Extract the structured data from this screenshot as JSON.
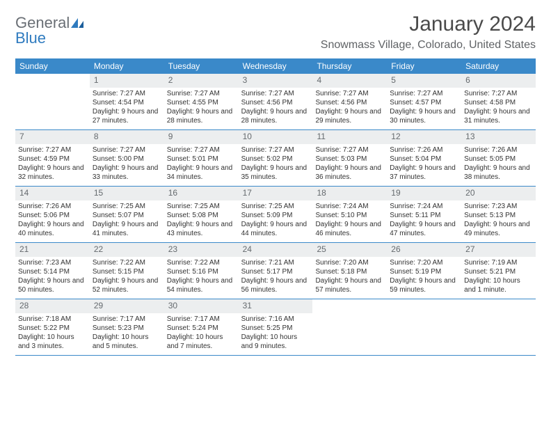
{
  "logo": {
    "word1": "General",
    "word2": "Blue"
  },
  "title": {
    "month": "January 2024",
    "location": "Snowmass Village, Colorado, United States"
  },
  "colors": {
    "header_bg": "#3a89c9",
    "header_text": "#ffffff",
    "num_bg": "#eceeef",
    "num_text": "#656a6e",
    "border": "#3a89c9",
    "logo_gray": "#6a6f75",
    "logo_blue": "#2f7bbf",
    "body_text": "#323232"
  },
  "day_names": [
    "Sunday",
    "Monday",
    "Tuesday",
    "Wednesday",
    "Thursday",
    "Friday",
    "Saturday"
  ],
  "weeks": [
    [
      {
        "n": "",
        "sr": "",
        "ss": "",
        "dl": ""
      },
      {
        "n": "1",
        "sr": "Sunrise: 7:27 AM",
        "ss": "Sunset: 4:54 PM",
        "dl": "Daylight: 9 hours and 27 minutes."
      },
      {
        "n": "2",
        "sr": "Sunrise: 7:27 AM",
        "ss": "Sunset: 4:55 PM",
        "dl": "Daylight: 9 hours and 28 minutes."
      },
      {
        "n": "3",
        "sr": "Sunrise: 7:27 AM",
        "ss": "Sunset: 4:56 PM",
        "dl": "Daylight: 9 hours and 28 minutes."
      },
      {
        "n": "4",
        "sr": "Sunrise: 7:27 AM",
        "ss": "Sunset: 4:56 PM",
        "dl": "Daylight: 9 hours and 29 minutes."
      },
      {
        "n": "5",
        "sr": "Sunrise: 7:27 AM",
        "ss": "Sunset: 4:57 PM",
        "dl": "Daylight: 9 hours and 30 minutes."
      },
      {
        "n": "6",
        "sr": "Sunrise: 7:27 AM",
        "ss": "Sunset: 4:58 PM",
        "dl": "Daylight: 9 hours and 31 minutes."
      }
    ],
    [
      {
        "n": "7",
        "sr": "Sunrise: 7:27 AM",
        "ss": "Sunset: 4:59 PM",
        "dl": "Daylight: 9 hours and 32 minutes."
      },
      {
        "n": "8",
        "sr": "Sunrise: 7:27 AM",
        "ss": "Sunset: 5:00 PM",
        "dl": "Daylight: 9 hours and 33 minutes."
      },
      {
        "n": "9",
        "sr": "Sunrise: 7:27 AM",
        "ss": "Sunset: 5:01 PM",
        "dl": "Daylight: 9 hours and 34 minutes."
      },
      {
        "n": "10",
        "sr": "Sunrise: 7:27 AM",
        "ss": "Sunset: 5:02 PM",
        "dl": "Daylight: 9 hours and 35 minutes."
      },
      {
        "n": "11",
        "sr": "Sunrise: 7:27 AM",
        "ss": "Sunset: 5:03 PM",
        "dl": "Daylight: 9 hours and 36 minutes."
      },
      {
        "n": "12",
        "sr": "Sunrise: 7:26 AM",
        "ss": "Sunset: 5:04 PM",
        "dl": "Daylight: 9 hours and 37 minutes."
      },
      {
        "n": "13",
        "sr": "Sunrise: 7:26 AM",
        "ss": "Sunset: 5:05 PM",
        "dl": "Daylight: 9 hours and 38 minutes."
      }
    ],
    [
      {
        "n": "14",
        "sr": "Sunrise: 7:26 AM",
        "ss": "Sunset: 5:06 PM",
        "dl": "Daylight: 9 hours and 40 minutes."
      },
      {
        "n": "15",
        "sr": "Sunrise: 7:25 AM",
        "ss": "Sunset: 5:07 PM",
        "dl": "Daylight: 9 hours and 41 minutes."
      },
      {
        "n": "16",
        "sr": "Sunrise: 7:25 AM",
        "ss": "Sunset: 5:08 PM",
        "dl": "Daylight: 9 hours and 43 minutes."
      },
      {
        "n": "17",
        "sr": "Sunrise: 7:25 AM",
        "ss": "Sunset: 5:09 PM",
        "dl": "Daylight: 9 hours and 44 minutes."
      },
      {
        "n": "18",
        "sr": "Sunrise: 7:24 AM",
        "ss": "Sunset: 5:10 PM",
        "dl": "Daylight: 9 hours and 46 minutes."
      },
      {
        "n": "19",
        "sr": "Sunrise: 7:24 AM",
        "ss": "Sunset: 5:11 PM",
        "dl": "Daylight: 9 hours and 47 minutes."
      },
      {
        "n": "20",
        "sr": "Sunrise: 7:23 AM",
        "ss": "Sunset: 5:13 PM",
        "dl": "Daylight: 9 hours and 49 minutes."
      }
    ],
    [
      {
        "n": "21",
        "sr": "Sunrise: 7:23 AM",
        "ss": "Sunset: 5:14 PM",
        "dl": "Daylight: 9 hours and 50 minutes."
      },
      {
        "n": "22",
        "sr": "Sunrise: 7:22 AM",
        "ss": "Sunset: 5:15 PM",
        "dl": "Daylight: 9 hours and 52 minutes."
      },
      {
        "n": "23",
        "sr": "Sunrise: 7:22 AM",
        "ss": "Sunset: 5:16 PM",
        "dl": "Daylight: 9 hours and 54 minutes."
      },
      {
        "n": "24",
        "sr": "Sunrise: 7:21 AM",
        "ss": "Sunset: 5:17 PM",
        "dl": "Daylight: 9 hours and 56 minutes."
      },
      {
        "n": "25",
        "sr": "Sunrise: 7:20 AM",
        "ss": "Sunset: 5:18 PM",
        "dl": "Daylight: 9 hours and 57 minutes."
      },
      {
        "n": "26",
        "sr": "Sunrise: 7:20 AM",
        "ss": "Sunset: 5:19 PM",
        "dl": "Daylight: 9 hours and 59 minutes."
      },
      {
        "n": "27",
        "sr": "Sunrise: 7:19 AM",
        "ss": "Sunset: 5:21 PM",
        "dl": "Daylight: 10 hours and 1 minute."
      }
    ],
    [
      {
        "n": "28",
        "sr": "Sunrise: 7:18 AM",
        "ss": "Sunset: 5:22 PM",
        "dl": "Daylight: 10 hours and 3 minutes."
      },
      {
        "n": "29",
        "sr": "Sunrise: 7:17 AM",
        "ss": "Sunset: 5:23 PM",
        "dl": "Daylight: 10 hours and 5 minutes."
      },
      {
        "n": "30",
        "sr": "Sunrise: 7:17 AM",
        "ss": "Sunset: 5:24 PM",
        "dl": "Daylight: 10 hours and 7 minutes."
      },
      {
        "n": "31",
        "sr": "Sunrise: 7:16 AM",
        "ss": "Sunset: 5:25 PM",
        "dl": "Daylight: 10 hours and 9 minutes."
      },
      {
        "n": "",
        "sr": "",
        "ss": "",
        "dl": ""
      },
      {
        "n": "",
        "sr": "",
        "ss": "",
        "dl": ""
      },
      {
        "n": "",
        "sr": "",
        "ss": "",
        "dl": ""
      }
    ]
  ]
}
